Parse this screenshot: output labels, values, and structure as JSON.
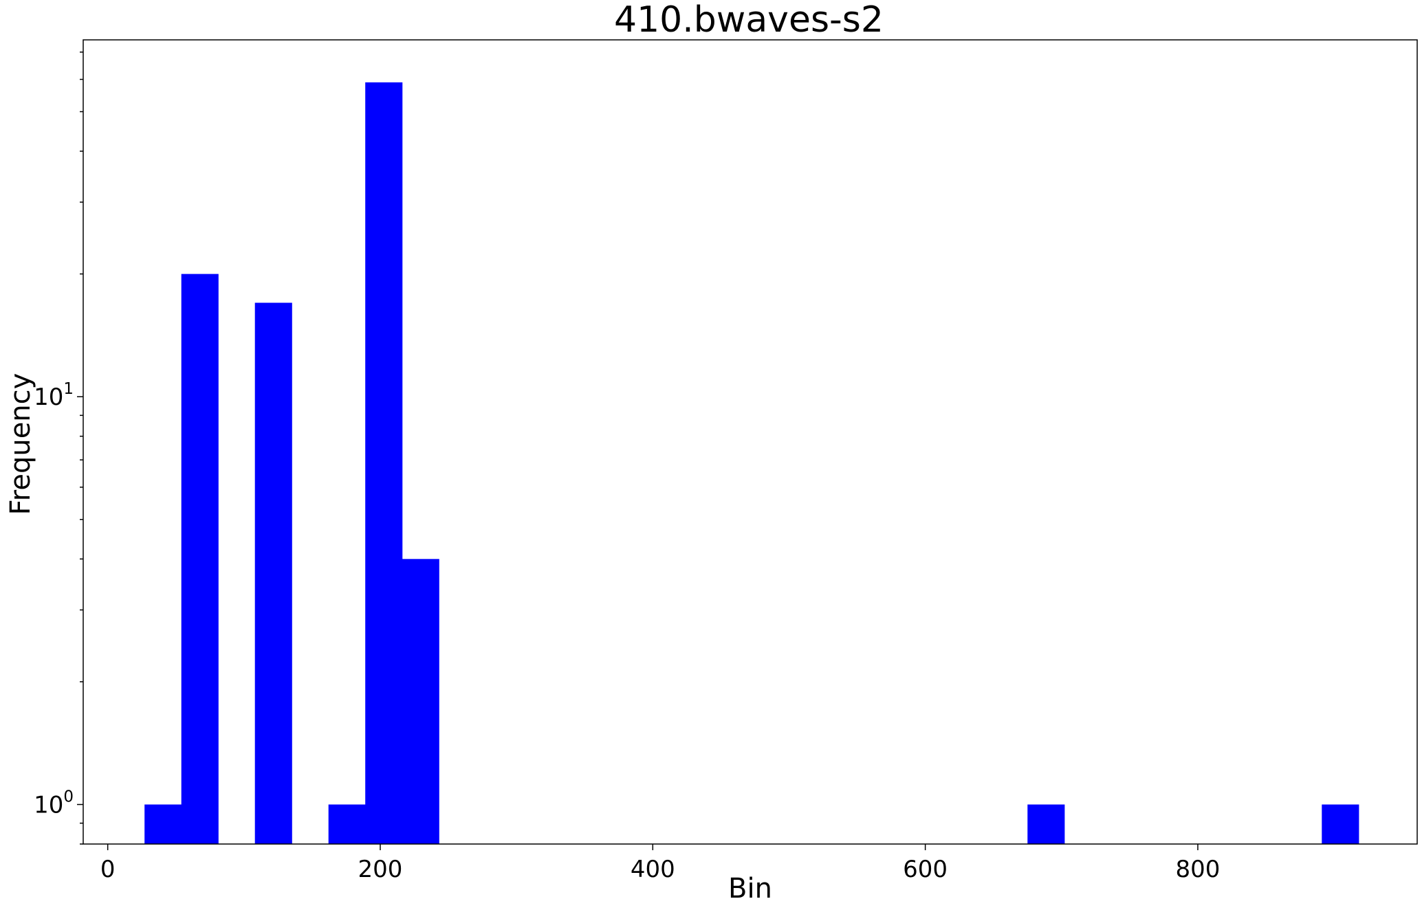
{
  "chart_data": {
    "type": "bar",
    "title": "410.bwaves-s2",
    "xlabel": "Bin",
    "ylabel": "Frequency",
    "x_scale": "linear",
    "y_scale": "log",
    "xlim": [
      -18,
      961
    ],
    "ylim": [
      0.8,
      75
    ],
    "x_ticks": [
      {
        "value": 0,
        "label": "0"
      },
      {
        "value": 200,
        "label": "200"
      },
      {
        "value": 400,
        "label": "400"
      },
      {
        "value": 600,
        "label": "600"
      },
      {
        "value": 800,
        "label": "800"
      }
    ],
    "y_ticks": [
      {
        "value": 1,
        "base": "10",
        "exp": "0"
      },
      {
        "value": 10,
        "base": "10",
        "exp": "1"
      }
    ],
    "bin_width": 27,
    "bars": [
      {
        "x0": 27,
        "x1": 54,
        "count": 1
      },
      {
        "x0": 54,
        "x1": 81,
        "count": 20
      },
      {
        "x0": 108,
        "x1": 135,
        "count": 17
      },
      {
        "x0": 162,
        "x1": 189,
        "count": 1
      },
      {
        "x0": 189,
        "x1": 216,
        "count": 59
      },
      {
        "x0": 216,
        "x1": 243,
        "count": 4
      },
      {
        "x0": 675,
        "x1": 702,
        "count": 1
      },
      {
        "x0": 891,
        "x1": 918,
        "count": 1
      }
    ],
    "bar_color": "#0000ff",
    "grid": false,
    "legend": "none"
  }
}
